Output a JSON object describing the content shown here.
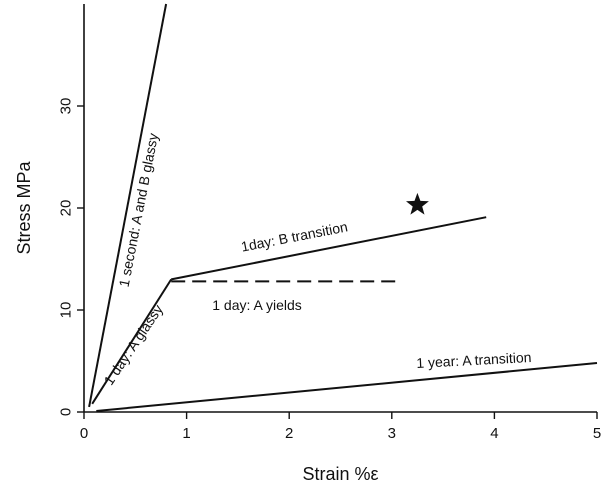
{
  "chart_data": {
    "type": "line",
    "xlabel": "Strain %ε",
    "ylabel": "Stress MPa",
    "xlim": [
      0,
      5
    ],
    "ylim": [
      0,
      40
    ],
    "x_ticks": [
      0,
      1,
      2,
      3,
      4,
      5
    ],
    "x_tick_labels": [
      "0",
      "1",
      "2",
      "3",
      "4",
      "5"
    ],
    "y_ticks": [
      0,
      10,
      20,
      30
    ],
    "y_tick_labels": [
      "0",
      "10",
      "20",
      "30"
    ],
    "grid": false,
    "series": [
      {
        "name": "1 second: A and B glassy",
        "style": "solid",
        "points": [
          [
            0.05,
            0.5
          ],
          [
            0.8,
            40
          ]
        ]
      },
      {
        "name": "1 day: A glassy",
        "style": "solid",
        "points": [
          [
            0.08,
            0.8
          ],
          [
            0.85,
            13
          ]
        ]
      },
      {
        "name": "1day: B transition",
        "style": "solid",
        "points": [
          [
            0.85,
            13
          ],
          [
            3.92,
            19.1
          ]
        ]
      },
      {
        "name": "1 day: A yields",
        "style": "dashed",
        "points": [
          [
            0.85,
            12.8
          ],
          [
            3.05,
            12.8
          ]
        ]
      },
      {
        "name": "1 year: A transition",
        "style": "solid",
        "points": [
          [
            0.12,
            0.1
          ],
          [
            5.0,
            4.8
          ]
        ]
      }
    ],
    "annotations": [
      {
        "text": "1 second: A and B glassy",
        "x": 0.53,
        "y": 19.8,
        "rotate": -79,
        "anchor": "middle"
      },
      {
        "text": "1day: B transition",
        "x": 2.05,
        "y": 17.2,
        "rotate": -11,
        "anchor": "middle"
      },
      {
        "text": "1 day: A yields",
        "x": 1.25,
        "y": 10.5,
        "rotate": 0,
        "anchor": "start"
      },
      {
        "text": "1 day: A glassy",
        "x": 0.48,
        "y": 6.6,
        "rotate": -56,
        "anchor": "middle"
      },
      {
        "text": "1 year: A transition",
        "x": 3.8,
        "y": 5.1,
        "rotate": -3,
        "anchor": "middle"
      }
    ],
    "marker": {
      "symbol": "star",
      "x": 3.25,
      "y": 20.3
    }
  }
}
